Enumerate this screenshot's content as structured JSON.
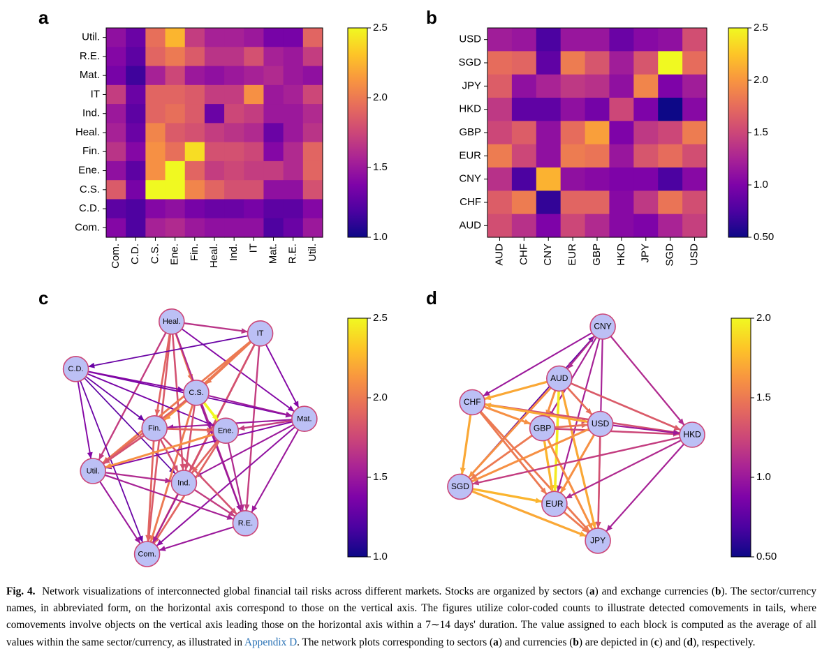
{
  "panels": {
    "a": "a",
    "b": "b",
    "c": "c",
    "d": "d"
  },
  "chart_data": [
    {
      "panel": "a",
      "type": "heatmap",
      "x_categories": [
        "Com.",
        "C.D.",
        "C.S.",
        "Ene.",
        "Fin.",
        "Heal.",
        "Ind.",
        "IT",
        "Mat.",
        "R.E.",
        "Util."
      ],
      "y_categories": [
        "Util.",
        "R.E.",
        "Mat.",
        "IT",
        "Ind.",
        "Heal.",
        "Fin.",
        "Ene.",
        "C.S.",
        "C.D.",
        "Com."
      ],
      "values": [
        [
          1.45,
          1.3,
          1.95,
          2.25,
          1.7,
          1.55,
          1.55,
          1.5,
          1.35,
          1.35,
          1.9
        ],
        [
          1.4,
          1.25,
          1.9,
          2.0,
          1.85,
          1.65,
          1.65,
          1.8,
          1.55,
          1.5,
          1.7
        ],
        [
          1.35,
          1.15,
          1.55,
          1.75,
          1.5,
          1.45,
          1.5,
          1.55,
          1.6,
          1.5,
          1.45
        ],
        [
          1.7,
          1.3,
          1.9,
          1.9,
          1.85,
          1.7,
          1.7,
          2.1,
          1.5,
          1.55,
          1.75
        ],
        [
          1.5,
          1.25,
          1.9,
          1.95,
          1.85,
          1.3,
          1.75,
          1.7,
          1.5,
          1.5,
          1.6
        ],
        [
          1.55,
          1.3,
          2.05,
          1.85,
          1.8,
          1.7,
          1.65,
          1.6,
          1.3,
          1.5,
          1.65
        ],
        [
          1.65,
          1.4,
          2.1,
          1.95,
          2.4,
          1.8,
          1.8,
          1.75,
          1.4,
          1.6,
          1.9
        ],
        [
          1.45,
          1.25,
          2.1,
          2.5,
          1.9,
          1.7,
          1.75,
          1.7,
          1.7,
          1.6,
          1.9
        ],
        [
          1.85,
          1.35,
          2.5,
          2.5,
          2.05,
          1.9,
          1.8,
          1.8,
          1.45,
          1.45,
          1.8
        ],
        [
          1.25,
          1.2,
          1.4,
          1.45,
          1.35,
          1.3,
          1.3,
          1.35,
          1.25,
          1.25,
          1.4
        ],
        [
          1.4,
          1.2,
          1.55,
          1.6,
          1.5,
          1.45,
          1.45,
          1.45,
          1.2,
          1.3,
          1.5
        ]
      ],
      "zlim": [
        1.0,
        2.5
      ],
      "colorbar_ticks": [
        "1.0",
        "1.5",
        "2.0",
        "2.5"
      ],
      "colormap": "plasma"
    },
    {
      "panel": "b",
      "type": "heatmap",
      "x_categories": [
        "AUD",
        "CHF",
        "CNY",
        "EUR",
        "GBP",
        "HKD",
        "JPY",
        "SGD",
        "USD"
      ],
      "y_categories": [
        "USD",
        "SGD",
        "JPY",
        "HKD",
        "GBP",
        "EUR",
        "CNY",
        "CHF",
        "AUD"
      ],
      "values": [
        [
          1.2,
          1.15,
          0.75,
          1.15,
          1.15,
          0.9,
          1.05,
          1.1,
          1.55
        ],
        [
          1.75,
          1.7,
          0.85,
          1.85,
          1.6,
          1.2,
          1.6,
          2.5,
          1.75
        ],
        [
          1.65,
          1.1,
          1.25,
          1.4,
          1.35,
          1.1,
          1.9,
          1.0,
          1.2
        ],
        [
          1.4,
          0.85,
          0.85,
          1.1,
          0.95,
          1.5,
          1.0,
          0.5,
          1.05
        ],
        [
          1.5,
          1.65,
          1.1,
          1.75,
          2.05,
          1.0,
          1.4,
          1.5,
          1.85
        ],
        [
          1.85,
          1.5,
          1.1,
          1.85,
          1.8,
          1.15,
          1.6,
          1.75,
          1.55
        ],
        [
          1.35,
          0.75,
          2.15,
          1.1,
          1.05,
          1.0,
          1.0,
          0.75,
          1.05
        ],
        [
          1.65,
          1.85,
          0.65,
          1.7,
          1.7,
          1.05,
          1.4,
          1.8,
          1.55
        ],
        [
          1.55,
          1.35,
          1.0,
          1.5,
          1.3,
          1.05,
          1.0,
          1.25,
          1.45
        ]
      ],
      "zlim": [
        0.5,
        2.5
      ],
      "colorbar_ticks": [
        "0.50",
        "1.0",
        "1.5",
        "2.0",
        "2.5"
      ],
      "colormap": "plasma"
    },
    {
      "panel": "c",
      "type": "network",
      "nodes": [
        {
          "id": "Heal.",
          "rx": 0.42,
          "ry": 0.02
        },
        {
          "id": "IT",
          "rx": 0.78,
          "ry": 0.07
        },
        {
          "id": "C.D.",
          "rx": 0.03,
          "ry": 0.22
        },
        {
          "id": "C.S.",
          "rx": 0.52,
          "ry": 0.32
        },
        {
          "id": "Mat.",
          "rx": 0.96,
          "ry": 0.43
        },
        {
          "id": "Fin.",
          "rx": 0.35,
          "ry": 0.47
        },
        {
          "id": "Ene.",
          "rx": 0.64,
          "ry": 0.48
        },
        {
          "id": "Util.",
          "rx": 0.1,
          "ry": 0.65
        },
        {
          "id": "Ind.",
          "rx": 0.47,
          "ry": 0.7
        },
        {
          "id": "R.E.",
          "rx": 0.72,
          "ry": 0.87
        },
        {
          "id": "Com.",
          "rx": 0.32,
          "ry": 1.0
        }
      ],
      "edges": [
        [
          "Heal.",
          "IT",
          1.65
        ],
        [
          "Heal.",
          "Com.",
          1.85
        ],
        [
          "Heal.",
          "Util.",
          1.7
        ],
        [
          "Heal.",
          "C.S.",
          2.0
        ],
        [
          "Heal.",
          "Mat.",
          1.4
        ],
        [
          "Heal.",
          "R.E.",
          1.6
        ],
        [
          "Heal.",
          "Fin.",
          1.9
        ],
        [
          "Heal.",
          "Ind.",
          1.8
        ],
        [
          "IT",
          "C.D.",
          1.3
        ],
        [
          "IT",
          "Util.",
          2.0
        ],
        [
          "IT",
          "Fin.",
          2.0
        ],
        [
          "IT",
          "Com.",
          1.9
        ],
        [
          "IT",
          "Ind.",
          1.8
        ],
        [
          "IT",
          "Mat.",
          1.4
        ],
        [
          "IT",
          "R.E.",
          1.7
        ],
        [
          "IT",
          "C.S.",
          2.0
        ],
        [
          "C.D.",
          "Mat.",
          1.35
        ],
        [
          "C.D.",
          "Ene.",
          1.35
        ],
        [
          "C.D.",
          "C.S.",
          1.4
        ],
        [
          "C.D.",
          "Ind.",
          1.25
        ],
        [
          "C.D.",
          "Util.",
          1.4
        ],
        [
          "C.D.",
          "Com.",
          1.3
        ],
        [
          "C.D.",
          "Fin.",
          1.3
        ],
        [
          "C.S.",
          "Ene.",
          2.5
        ],
        [
          "C.S.",
          "Fin.",
          2.1
        ],
        [
          "C.S.",
          "Util.",
          1.9
        ],
        [
          "C.S.",
          "Com.",
          2.0
        ],
        [
          "C.S.",
          "Mat.",
          1.5
        ],
        [
          "C.S.",
          "R.E.",
          1.5
        ],
        [
          "C.S.",
          "Ind.",
          1.8
        ],
        [
          "Mat.",
          "Util.",
          1.4
        ],
        [
          "Mat.",
          "Fin.",
          1.5
        ],
        [
          "Mat.",
          "Ind.",
          1.5
        ],
        [
          "Mat.",
          "Com.",
          1.45
        ],
        [
          "Mat.",
          "R.E.",
          1.5
        ],
        [
          "Mat.",
          "Ene.",
          1.7
        ],
        [
          "Fin.",
          "Ene.",
          1.9
        ],
        [
          "Fin.",
          "Util.",
          1.8
        ],
        [
          "Fin.",
          "Com.",
          1.9
        ],
        [
          "Fin.",
          "Ind.",
          1.8
        ],
        [
          "Fin.",
          "R.E.",
          1.8
        ],
        [
          "Ene.",
          "Util.",
          2.1
        ],
        [
          "Ene.",
          "Ind.",
          1.9
        ],
        [
          "Ene.",
          "Com.",
          1.9
        ],
        [
          "Ene.",
          "R.E.",
          1.6
        ],
        [
          "Util.",
          "Ind.",
          1.6
        ],
        [
          "Util.",
          "R.E.",
          1.55
        ],
        [
          "Util.",
          "Com.",
          1.5
        ],
        [
          "Ind.",
          "R.E.",
          1.7
        ],
        [
          "Ind.",
          "Com.",
          1.55
        ],
        [
          "R.E.",
          "Com.",
          1.5
        ]
      ],
      "zlim": [
        1.0,
        2.5
      ],
      "colorbar_ticks": [
        "1.0",
        "1.5",
        "2.0",
        "2.5"
      ],
      "colormap": "plasma"
    },
    {
      "panel": "d",
      "type": "network",
      "nodes": [
        {
          "id": "CNY",
          "rx": 0.61,
          "ry": 0.0
        },
        {
          "id": "AUD",
          "rx": 0.43,
          "ry": 0.24
        },
        {
          "id": "CHF",
          "rx": 0.07,
          "ry": 0.35
        },
        {
          "id": "GBP",
          "rx": 0.36,
          "ry": 0.47
        },
        {
          "id": "USD",
          "rx": 0.6,
          "ry": 0.45
        },
        {
          "id": "HKD",
          "rx": 0.98,
          "ry": 0.5
        },
        {
          "id": "SGD",
          "rx": 0.02,
          "ry": 0.74
        },
        {
          "id": "EUR",
          "rx": 0.41,
          "ry": 0.82
        },
        {
          "id": "JPY",
          "rx": 0.59,
          "ry": 0.99
        }
      ],
      "edges": [
        [
          "SGD",
          "CNY",
          0.75
        ],
        [
          "CNY",
          "HKD",
          1.1
        ],
        [
          "CNY",
          "AUD",
          1.1
        ],
        [
          "CNY",
          "GBP",
          1.05
        ],
        [
          "CNY",
          "EUR",
          1.05
        ],
        [
          "CNY",
          "JPY",
          1.05
        ],
        [
          "CNY",
          "CHF",
          1.0
        ],
        [
          "AUD",
          "CHF",
          1.7
        ],
        [
          "AUD",
          "GBP",
          1.6
        ],
        [
          "AUD",
          "USD",
          1.45
        ],
        [
          "AUD",
          "EUR",
          1.95
        ],
        [
          "AUD",
          "JPY",
          1.7
        ],
        [
          "AUD",
          "SGD",
          1.6
        ],
        [
          "AUD",
          "HKD",
          1.35
        ],
        [
          "CHF",
          "GBP",
          1.6
        ],
        [
          "CHF",
          "USD",
          1.25
        ],
        [
          "CHF",
          "SGD",
          1.7
        ],
        [
          "CHF",
          "EUR",
          1.5
        ],
        [
          "CHF",
          "JPY",
          1.5
        ],
        [
          "CHF",
          "HKD",
          1.3
        ],
        [
          "GBP",
          "USD",
          1.45
        ],
        [
          "GBP",
          "EUR",
          1.75
        ],
        [
          "GBP",
          "SGD",
          1.5
        ],
        [
          "GBP",
          "JPY",
          1.6
        ],
        [
          "GBP",
          "HKD",
          1.25
        ],
        [
          "USD",
          "HKD",
          1.0
        ],
        [
          "USD",
          "EUR",
          1.6
        ],
        [
          "USD",
          "JPY",
          1.3
        ],
        [
          "USD",
          "SGD",
          1.6
        ],
        [
          "USD",
          "CHF",
          1.7
        ],
        [
          "HKD",
          "SGD",
          1.2
        ],
        [
          "HKD",
          "EUR",
          1.1
        ],
        [
          "HKD",
          "JPY",
          1.05
        ],
        [
          "SGD",
          "EUR",
          1.75
        ],
        [
          "SGD",
          "JPY",
          1.7
        ],
        [
          "EUR",
          "JPY",
          1.5
        ]
      ],
      "zlim": [
        0.5,
        2.0
      ],
      "colorbar_ticks": [
        "0.50",
        "1.0",
        "1.5",
        "2.0"
      ],
      "colormap": "plasma"
    }
  ],
  "caption": {
    "label": "Fig. 4.",
    "t1": "Network visualizations of interconnected global financial tail risks across different markets. Stocks are organized by sectors (",
    "b1": "a",
    "t2": ") and exchange currencies (",
    "b2": "b",
    "t3": "). The sector/currency names, in abbreviated form, on the horizontal axis correspond to those on the vertical axis. The figures utilize color-coded counts to illustrate detected comovements in tails, where comovements involve objects on the vertical axis leading those on the horizontal axis within a 7∼14 days' duration. The value assigned to each block is computed as the average of all values within the same sector/currency, as illustrated in ",
    "link": "Appendix D",
    "t4": ". The network plots corresponding to sectors (",
    "b3": "a",
    "t5": ") and currencies (",
    "b4": "b",
    "t6": ") are depicted in (",
    "b5": "c",
    "t7": ") and (",
    "b6": "d",
    "t8": "), respectively."
  }
}
